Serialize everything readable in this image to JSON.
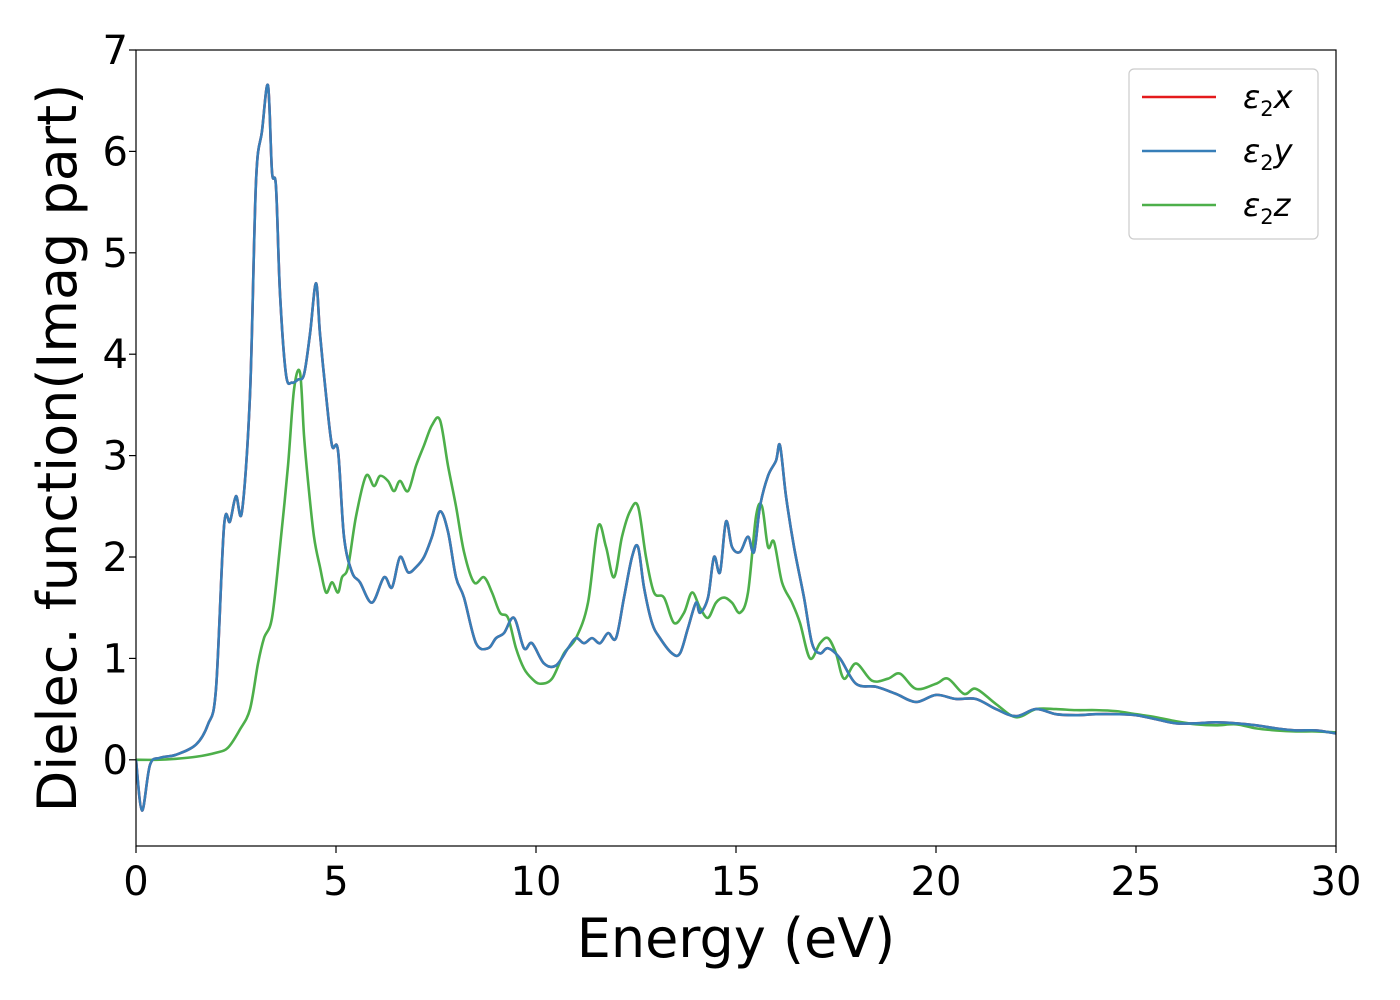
{
  "chart_data": {
    "type": "line",
    "title": "",
    "xlabel": "Energy (eV)",
    "ylabel": "Dielec. function(Imag part)",
    "xlim": [
      0,
      30
    ],
    "ylim": [
      -0.85,
      7
    ],
    "xticks": [
      0,
      5,
      10,
      15,
      20,
      25,
      30
    ],
    "yticks": [
      0,
      1,
      2,
      3,
      4,
      5,
      6,
      7
    ],
    "grid": false,
    "legend_position": "top-right",
    "colors": {
      "x": "#e41a1c",
      "y": "#377eb8",
      "z": "#4daf4a"
    },
    "series": [
      {
        "name": "ε2x",
        "key": "x",
        "x": [
          0,
          0.15,
          0.35,
          0.6,
          1.0,
          1.5,
          1.8,
          2.0,
          2.2,
          2.35,
          2.5,
          2.65,
          2.85,
          3.0,
          3.15,
          3.3,
          3.4,
          3.5,
          3.6,
          3.75,
          3.9,
          4.05,
          4.2,
          4.35,
          4.5,
          4.6,
          4.75,
          4.9,
          5.05,
          5.2,
          5.4,
          5.6,
          5.9,
          6.2,
          6.4,
          6.6,
          6.8,
          7.0,
          7.2,
          7.4,
          7.6,
          7.8,
          8.0,
          8.2,
          8.5,
          8.8,
          9.0,
          9.2,
          9.45,
          9.7,
          9.9,
          10.2,
          10.5,
          10.8,
          11.0,
          11.2,
          11.4,
          11.6,
          11.8,
          12.0,
          12.2,
          12.4,
          12.55,
          12.7,
          12.9,
          13.1,
          13.4,
          13.6,
          13.8,
          14.0,
          14.1,
          14.3,
          14.45,
          14.6,
          14.75,
          14.9,
          15.1,
          15.3,
          15.45,
          15.6,
          15.8,
          16.0,
          16.1,
          16.25,
          16.45,
          16.7,
          16.9,
          17.1,
          17.3,
          17.6,
          18.0,
          18.5,
          19.0,
          19.5,
          20.0,
          20.5,
          21.0,
          21.5,
          22.0,
          22.5,
          23.0,
          23.5,
          24.0,
          24.5,
          25.0,
          25.5,
          26.0,
          26.5,
          27.0,
          27.5,
          28.0,
          28.5,
          29.0,
          29.5,
          30.0
        ],
        "y": [
          0.0,
          -0.5,
          -0.05,
          0.02,
          0.05,
          0.15,
          0.35,
          0.7,
          2.3,
          2.35,
          2.6,
          2.45,
          3.6,
          5.7,
          6.2,
          6.65,
          5.8,
          5.65,
          4.6,
          3.8,
          3.72,
          3.75,
          3.8,
          4.2,
          4.7,
          4.2,
          3.6,
          3.1,
          3.05,
          2.2,
          1.85,
          1.75,
          1.55,
          1.8,
          1.7,
          2.0,
          1.85,
          1.9,
          2.0,
          2.2,
          2.45,
          2.25,
          1.8,
          1.6,
          1.15,
          1.1,
          1.2,
          1.25,
          1.4,
          1.1,
          1.15,
          0.95,
          0.93,
          1.1,
          1.2,
          1.15,
          1.2,
          1.15,
          1.25,
          1.2,
          1.6,
          2.0,
          2.1,
          1.7,
          1.35,
          1.2,
          1.05,
          1.05,
          1.3,
          1.55,
          1.45,
          1.6,
          2.0,
          1.85,
          2.35,
          2.1,
          2.05,
          2.2,
          2.05,
          2.5,
          2.8,
          2.95,
          3.1,
          2.6,
          2.1,
          1.6,
          1.15,
          1.05,
          1.1,
          1.0,
          0.75,
          0.72,
          0.65,
          0.57,
          0.64,
          0.6,
          0.6,
          0.5,
          0.43,
          0.5,
          0.45,
          0.44,
          0.45,
          0.45,
          0.44,
          0.4,
          0.36,
          0.36,
          0.37,
          0.36,
          0.34,
          0.31,
          0.29,
          0.29,
          0.26
        ]
      },
      {
        "name": "ε2y",
        "key": "y",
        "x": [
          0,
          0.15,
          0.35,
          0.6,
          1.0,
          1.5,
          1.8,
          2.0,
          2.2,
          2.35,
          2.5,
          2.65,
          2.85,
          3.0,
          3.15,
          3.3,
          3.4,
          3.5,
          3.6,
          3.75,
          3.9,
          4.05,
          4.2,
          4.35,
          4.5,
          4.6,
          4.75,
          4.9,
          5.05,
          5.2,
          5.4,
          5.6,
          5.9,
          6.2,
          6.4,
          6.6,
          6.8,
          7.0,
          7.2,
          7.4,
          7.6,
          7.8,
          8.0,
          8.2,
          8.5,
          8.8,
          9.0,
          9.2,
          9.45,
          9.7,
          9.9,
          10.2,
          10.5,
          10.8,
          11.0,
          11.2,
          11.4,
          11.6,
          11.8,
          12.0,
          12.2,
          12.4,
          12.55,
          12.7,
          12.9,
          13.1,
          13.4,
          13.6,
          13.8,
          14.0,
          14.1,
          14.3,
          14.45,
          14.6,
          14.75,
          14.9,
          15.1,
          15.3,
          15.45,
          15.6,
          15.8,
          16.0,
          16.1,
          16.25,
          16.45,
          16.7,
          16.9,
          17.1,
          17.3,
          17.6,
          18.0,
          18.5,
          19.0,
          19.5,
          20.0,
          20.5,
          21.0,
          21.5,
          22.0,
          22.5,
          23.0,
          23.5,
          24.0,
          24.5,
          25.0,
          25.5,
          26.0,
          26.5,
          27.0,
          27.5,
          28.0,
          28.5,
          29.0,
          29.5,
          30.0
        ],
        "y": [
          0.0,
          -0.5,
          -0.05,
          0.02,
          0.05,
          0.15,
          0.35,
          0.7,
          2.3,
          2.35,
          2.6,
          2.45,
          3.6,
          5.7,
          6.2,
          6.65,
          5.8,
          5.65,
          4.6,
          3.8,
          3.72,
          3.75,
          3.8,
          4.2,
          4.7,
          4.2,
          3.6,
          3.1,
          3.05,
          2.2,
          1.85,
          1.75,
          1.55,
          1.8,
          1.7,
          2.0,
          1.85,
          1.9,
          2.0,
          2.2,
          2.45,
          2.25,
          1.8,
          1.6,
          1.15,
          1.1,
          1.2,
          1.25,
          1.4,
          1.1,
          1.15,
          0.95,
          0.93,
          1.1,
          1.2,
          1.15,
          1.2,
          1.15,
          1.25,
          1.2,
          1.6,
          2.0,
          2.1,
          1.7,
          1.35,
          1.2,
          1.05,
          1.05,
          1.3,
          1.55,
          1.45,
          1.6,
          2.0,
          1.85,
          2.35,
          2.1,
          2.05,
          2.2,
          2.05,
          2.5,
          2.8,
          2.95,
          3.1,
          2.6,
          2.1,
          1.6,
          1.15,
          1.05,
          1.1,
          1.0,
          0.75,
          0.72,
          0.65,
          0.57,
          0.64,
          0.6,
          0.6,
          0.5,
          0.43,
          0.5,
          0.45,
          0.44,
          0.45,
          0.45,
          0.44,
          0.4,
          0.36,
          0.36,
          0.37,
          0.36,
          0.34,
          0.31,
          0.29,
          0.29,
          0.26
        ]
      },
      {
        "name": "ε2z",
        "key": "z",
        "x": [
          0,
          0.5,
          1.0,
          1.5,
          2.0,
          2.3,
          2.6,
          2.85,
          3.05,
          3.2,
          3.4,
          3.6,
          3.8,
          3.95,
          4.1,
          4.2,
          4.3,
          4.45,
          4.6,
          4.75,
          4.9,
          5.05,
          5.15,
          5.3,
          5.5,
          5.75,
          5.95,
          6.1,
          6.3,
          6.45,
          6.6,
          6.8,
          7.0,
          7.2,
          7.4,
          7.6,
          7.8,
          8.0,
          8.2,
          8.45,
          8.7,
          8.9,
          9.1,
          9.3,
          9.5,
          9.7,
          9.9,
          10.1,
          10.4,
          10.7,
          11.0,
          11.3,
          11.55,
          11.75,
          11.95,
          12.15,
          12.35,
          12.55,
          12.75,
          12.95,
          13.2,
          13.45,
          13.7,
          13.9,
          14.1,
          14.3,
          14.5,
          14.7,
          14.9,
          15.1,
          15.3,
          15.5,
          15.65,
          15.8,
          15.95,
          16.15,
          16.4,
          16.6,
          16.85,
          17.1,
          17.3,
          17.5,
          17.7,
          18.0,
          18.4,
          18.8,
          19.1,
          19.5,
          20.0,
          20.3,
          20.7,
          21.0,
          21.5,
          22.0,
          22.5,
          23.0,
          23.5,
          24.0,
          24.5,
          25.0,
          25.5,
          26.0,
          26.5,
          27.0,
          27.5,
          28.0,
          28.5,
          29.0,
          29.5,
          30.0
        ],
        "y": [
          0.0,
          0.0,
          0.01,
          0.03,
          0.07,
          0.12,
          0.3,
          0.5,
          0.95,
          1.2,
          1.4,
          2.1,
          2.9,
          3.65,
          3.82,
          3.2,
          2.75,
          2.2,
          1.9,
          1.65,
          1.75,
          1.65,
          1.8,
          1.9,
          2.4,
          2.8,
          2.7,
          2.8,
          2.75,
          2.65,
          2.75,
          2.65,
          2.9,
          3.1,
          3.3,
          3.35,
          2.9,
          2.5,
          2.05,
          1.75,
          1.8,
          1.65,
          1.45,
          1.4,
          1.1,
          0.9,
          0.8,
          0.75,
          0.8,
          1.05,
          1.2,
          1.55,
          2.3,
          2.1,
          1.8,
          2.2,
          2.45,
          2.5,
          2.0,
          1.65,
          1.6,
          1.35,
          1.45,
          1.65,
          1.5,
          1.4,
          1.55,
          1.6,
          1.55,
          1.45,
          1.65,
          2.4,
          2.5,
          2.1,
          2.15,
          1.75,
          1.55,
          1.35,
          1.0,
          1.15,
          1.2,
          1.05,
          0.8,
          0.95,
          0.78,
          0.8,
          0.85,
          0.7,
          0.75,
          0.8,
          0.65,
          0.7,
          0.55,
          0.42,
          0.5,
          0.5,
          0.49,
          0.49,
          0.48,
          0.45,
          0.42,
          0.38,
          0.35,
          0.34,
          0.35,
          0.31,
          0.29,
          0.28,
          0.28,
          0.27
        ]
      }
    ]
  }
}
